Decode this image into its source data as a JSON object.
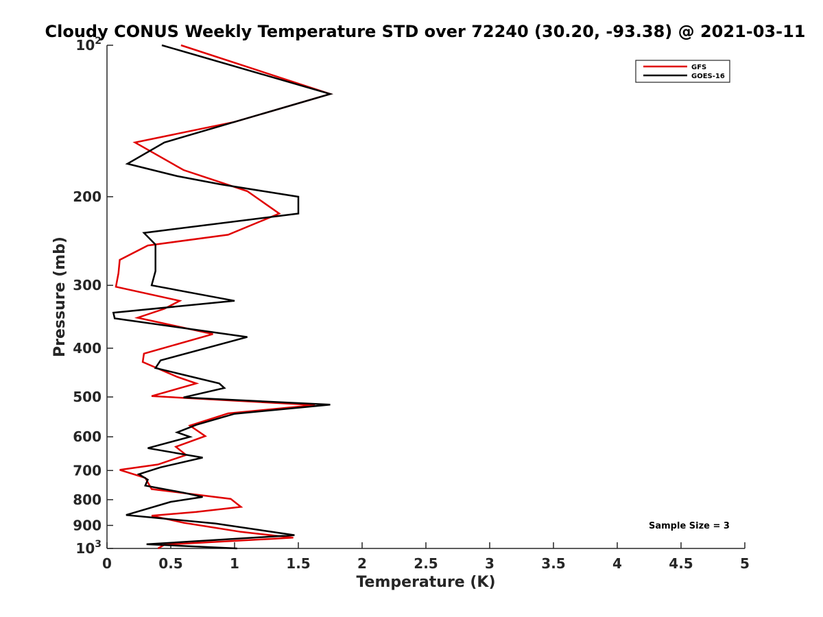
{
  "chart_data": {
    "type": "line",
    "title": "Cloudy CONUS Weekly Temperature STD over 72240 (30.20, -93.38) @ 2021-03-11",
    "xlabel": "Temperature (K)",
    "ylabel": "Pressure (mb)",
    "xlim": [
      0,
      5
    ],
    "ylim": [
      100,
      1000
    ],
    "y_scale": "log",
    "y_reversed": true,
    "grid": false,
    "legend_position": "top-right",
    "x_ticks": [
      "0",
      "0.5",
      "1",
      "1.5",
      "2",
      "2.5",
      "3",
      "3.5",
      "4",
      "4.5",
      "5"
    ],
    "y_ticks": [
      {
        "value": 100,
        "base": "10",
        "exp": "2"
      },
      {
        "value": 200,
        "label": "200"
      },
      {
        "value": 300,
        "label": "300"
      },
      {
        "value": 400,
        "label": "400"
      },
      {
        "value": 500,
        "label": "500"
      },
      {
        "value": 600,
        "label": "600"
      },
      {
        "value": 700,
        "label": "700"
      },
      {
        "value": 800,
        "label": "800"
      },
      {
        "value": 900,
        "label": "900"
      },
      {
        "value": 1000,
        "base": "10",
        "exp": "3"
      }
    ],
    "series": [
      {
        "name": "GFS",
        "color": "#e00000",
        "points": [
          [
            0.58,
            100
          ],
          [
            1.75,
            125
          ],
          [
            1.0,
            142
          ],
          [
            0.22,
            156
          ],
          [
            0.6,
            177
          ],
          [
            1.1,
            195
          ],
          [
            1.35,
            216
          ],
          [
            0.95,
            238
          ],
          [
            0.32,
            250
          ],
          [
            0.1,
            267
          ],
          [
            0.09,
            284
          ],
          [
            0.07,
            302
          ],
          [
            0.57,
            322
          ],
          [
            0.45,
            334
          ],
          [
            0.24,
            348
          ],
          [
            0.83,
            375
          ],
          [
            0.29,
            410
          ],
          [
            0.28,
            426
          ],
          [
            0.55,
            456
          ],
          [
            0.7,
            470
          ],
          [
            0.35,
            498
          ],
          [
            1.63,
            519
          ],
          [
            0.95,
            539
          ],
          [
            0.65,
            570
          ],
          [
            0.77,
            598
          ],
          [
            0.54,
            628
          ],
          [
            0.62,
            652
          ],
          [
            0.4,
            681
          ],
          [
            0.1,
            698
          ],
          [
            0.3,
            724
          ],
          [
            0.35,
            762
          ],
          [
            0.97,
            797
          ],
          [
            1.05,
            827
          ],
          [
            0.7,
            846
          ],
          [
            0.35,
            861
          ],
          [
            0.6,
            889
          ],
          [
            1.05,
            927
          ],
          [
            1.46,
            952
          ],
          [
            0.45,
            983
          ],
          [
            0.4,
            1000
          ]
        ]
      },
      {
        "name": "GOES-16",
        "color": "#000000",
        "points": [
          [
            0.43,
            100
          ],
          [
            1.75,
            125
          ],
          [
            1.0,
            142
          ],
          [
            0.45,
            156
          ],
          [
            0.16,
            172
          ],
          [
            0.55,
            182
          ],
          [
            0.89,
            189
          ],
          [
            1.5,
            200
          ],
          [
            1.5,
            216
          ],
          [
            0.29,
            236
          ],
          [
            0.38,
            249
          ],
          [
            0.38,
            264
          ],
          [
            0.38,
            281
          ],
          [
            0.35,
            300
          ],
          [
            1.0,
            322
          ],
          [
            0.05,
            340
          ],
          [
            0.06,
            349
          ],
          [
            1.1,
            380
          ],
          [
            0.42,
            423
          ],
          [
            0.38,
            438
          ],
          [
            0.88,
            470
          ],
          [
            0.92,
            480
          ],
          [
            0.6,
            501
          ],
          [
            1.75,
            518
          ],
          [
            1.0,
            540
          ],
          [
            0.7,
            568
          ],
          [
            0.55,
            588
          ],
          [
            0.65,
            600
          ],
          [
            0.32,
            632
          ],
          [
            0.75,
            660
          ],
          [
            0.42,
            690
          ],
          [
            0.25,
            712
          ],
          [
            0.32,
            730
          ],
          [
            0.3,
            750
          ],
          [
            0.6,
            775
          ],
          [
            0.75,
            790
          ],
          [
            0.5,
            808
          ],
          [
            0.15,
            858
          ],
          [
            0.85,
            892
          ],
          [
            1.47,
            941
          ],
          [
            0.31,
            981
          ],
          [
            1.02,
            1000
          ]
        ]
      }
    ],
    "annotations": [
      "Sample Size = 3"
    ]
  }
}
